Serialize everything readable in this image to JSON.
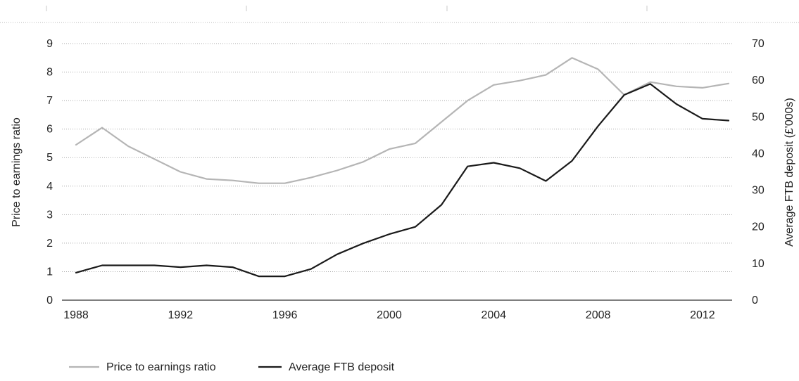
{
  "chart_data": {
    "type": "line",
    "title": "",
    "x": [
      1988,
      1989,
      1990,
      1991,
      1992,
      1993,
      1994,
      1995,
      1996,
      1997,
      1998,
      1999,
      2000,
      2001,
      2002,
      2003,
      2004,
      2005,
      2006,
      2007,
      2008,
      2009,
      2010,
      2011,
      2012,
      2013
    ],
    "xticks": [
      "1988",
      "1992",
      "1996",
      "2000",
      "2004",
      "2008",
      "2012"
    ],
    "xlim": [
      1988,
      2013
    ],
    "ylabel_left": "Price to earnings ratio",
    "ylabel_right": "Average FTB deposit (£'000s)",
    "yticks_left": [
      "0",
      "1",
      "2",
      "3",
      "4",
      "5",
      "6",
      "7",
      "8",
      "9"
    ],
    "yticks_right": [
      "0",
      "10",
      "20",
      "30",
      "40",
      "50",
      "60",
      "70"
    ],
    "ylim_left": [
      0,
      9
    ],
    "ylim_right": [
      0,
      70
    ],
    "grid": "horizontal dotted",
    "legend_position": "bottom-left",
    "series": [
      {
        "name": "Price to earnings ratio",
        "axis": "left",
        "color": "#b5b5b5",
        "values": [
          5.45,
          6.05,
          5.4,
          4.95,
          4.5,
          4.25,
          4.2,
          4.1,
          4.1,
          4.3,
          4.55,
          4.85,
          5.3,
          5.5,
          6.25,
          7.0,
          7.55,
          7.7,
          7.9,
          8.5,
          8.1,
          7.2,
          7.65,
          7.5,
          7.45,
          7.6
        ]
      },
      {
        "name": "Average FTB deposit",
        "axis": "right",
        "color": "#1a1a1a",
        "values": [
          7.5,
          9.5,
          9.5,
          9.5,
          9.0,
          9.5,
          9.0,
          6.5,
          6.5,
          8.5,
          12.5,
          15.5,
          18.0,
          20.0,
          26.0,
          36.5,
          37.5,
          36.0,
          32.5,
          38.0,
          47.5,
          56.0,
          59.0,
          53.5,
          49.5,
          49.0
        ]
      }
    ]
  }
}
